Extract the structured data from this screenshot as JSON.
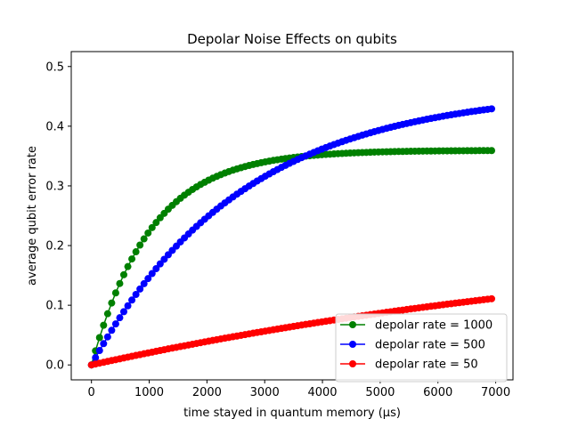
{
  "chart_data": {
    "type": "line",
    "title": "Depolar Noise Effects on qubits",
    "xlabel": "time stayed in quantum memory (µs)",
    "ylabel": "average qubit error rate",
    "xlim": [
      -350,
      7300
    ],
    "ylim": [
      -0.025,
      0.525
    ],
    "xticks": [
      0,
      1000,
      2000,
      3000,
      4000,
      5000,
      6000,
      7000
    ],
    "xtick_labels": [
      "0",
      "1000",
      "2000",
      "3000",
      "4000",
      "5000",
      "6000",
      "7000"
    ],
    "yticks": [
      0.0,
      0.1,
      0.2,
      0.3,
      0.4,
      0.5
    ],
    "ytick_labels": [
      "0.0",
      "0.1",
      "0.2",
      "0.3",
      "0.4",
      "0.5"
    ],
    "grid": false,
    "legend_position": "lower-right",
    "x_start": 0,
    "x_step": 70,
    "x_count": 100,
    "series": [
      {
        "name": "depolar rate = 1000",
        "color": "#008000",
        "values": [
          0.0,
          0.0237,
          0.0458,
          0.0665,
          0.0858,
          0.1038,
          0.1207,
          0.1364,
          0.1511,
          0.1648,
          0.1776,
          0.1896,
          0.2008,
          0.2112,
          0.221,
          0.2301,
          0.2386,
          0.2466,
          0.254,
          0.261,
          0.2674,
          0.2735,
          0.2792,
          0.2845,
          0.2894,
          0.294,
          0.2983,
          0.3024,
          0.3061,
          0.3096,
          0.3129,
          0.3159,
          0.3188,
          0.3215,
          0.324,
          0.3263,
          0.3285,
          0.3305,
          0.3324,
          0.3342,
          0.3359,
          0.3374,
          0.3389,
          0.3402,
          0.3415,
          0.3427,
          0.3438,
          0.3448,
          0.3458,
          0.3467,
          0.3476,
          0.3484,
          0.3491,
          0.3498,
          0.3505,
          0.3511,
          0.3516,
          0.3522,
          0.3527,
          0.3531,
          0.3536,
          0.354,
          0.3543,
          0.3547,
          0.355,
          0.3553,
          0.3556,
          0.3559,
          0.3561,
          0.3564,
          0.3566,
          0.3568,
          0.357,
          0.3571,
          0.3573,
          0.3575,
          0.3576,
          0.3577,
          0.3579,
          0.358,
          0.3581,
          0.3582,
          0.3583,
          0.3584,
          0.3584,
          0.3585,
          0.3586,
          0.3587,
          0.3587,
          0.3588,
          0.3588,
          0.3589,
          0.3589,
          0.359,
          0.359,
          0.359,
          0.3591,
          0.3591,
          0.3591,
          0.3592
        ]
      },
      {
        "name": "depolar rate = 500",
        "color": "#0000ff",
        "values": [
          0.0,
          0.0122,
          0.0241,
          0.0357,
          0.047,
          0.058,
          0.0687,
          0.0791,
          0.0892,
          0.0991,
          0.1087,
          0.1181,
          0.1272,
          0.1361,
          0.1447,
          0.1531,
          0.1613,
          0.1693,
          0.177,
          0.1846,
          0.1919,
          0.1991,
          0.2061,
          0.2128,
          0.2194,
          0.2259,
          0.2321,
          0.2382,
          0.2441,
          0.2499,
          0.2555,
          0.261,
          0.2663,
          0.2715,
          0.2765,
          0.2814,
          0.2862,
          0.2908,
          0.2953,
          0.2997,
          0.304,
          0.3082,
          0.3122,
          0.3162,
          0.32,
          0.3238,
          0.3274,
          0.331,
          0.3344,
          0.3378,
          0.341,
          0.3442,
          0.3473,
          0.3503,
          0.3532,
          0.3561,
          0.3589,
          0.3616,
          0.3642,
          0.3668,
          0.3693,
          0.3717,
          0.3741,
          0.3764,
          0.3786,
          0.3808,
          0.3829,
          0.385,
          0.387,
          0.389,
          0.3909,
          0.3928,
          0.3946,
          0.3964,
          0.3981,
          0.3998,
          0.4014,
          0.403,
          0.4045,
          0.406,
          0.4075,
          0.4089,
          0.4103,
          0.4117,
          0.413,
          0.4143,
          0.4155,
          0.4168,
          0.418,
          0.4191,
          0.4202,
          0.4213,
          0.4224,
          0.4234,
          0.4245,
          0.4254,
          0.4264,
          0.4273,
          0.4282,
          0.4291
        ]
      },
      {
        "name": "depolar rate = 50",
        "color": "#ff0000",
        "values": [
          0.0,
          0.0015,
          0.003,
          0.0044,
          0.0059,
          0.0074,
          0.0088,
          0.0102,
          0.0117,
          0.0131,
          0.0145,
          0.0159,
          0.0173,
          0.0187,
          0.0201,
          0.0214,
          0.0228,
          0.0242,
          0.0255,
          0.0269,
          0.0282,
          0.0295,
          0.0308,
          0.0321,
          0.0334,
          0.0347,
          0.036,
          0.0373,
          0.0386,
          0.0398,
          0.0411,
          0.0423,
          0.0436,
          0.0448,
          0.046,
          0.0472,
          0.0484,
          0.0496,
          0.0508,
          0.052,
          0.0532,
          0.0544,
          0.0555,
          0.0567,
          0.0578,
          0.059,
          0.0601,
          0.0612,
          0.0624,
          0.0635,
          0.0646,
          0.0657,
          0.0668,
          0.0679,
          0.0689,
          0.07,
          0.0711,
          0.0721,
          0.0732,
          0.0742,
          0.0753,
          0.0763,
          0.0773,
          0.0783,
          0.0794,
          0.0804,
          0.0814,
          0.0824,
          0.0833,
          0.0843,
          0.0853,
          0.0863,
          0.0872,
          0.0882,
          0.0891,
          0.0901,
          0.091,
          0.0919,
          0.0929,
          0.0938,
          0.0947,
          0.0956,
          0.0965,
          0.0974,
          0.0983,
          0.0991,
          0.1,
          0.1009,
          0.1018,
          0.1026,
          0.1035,
          0.1043,
          0.1051,
          0.106,
          0.1068,
          0.1076,
          0.1084,
          0.1093,
          0.1101,
          0.1109
        ]
      }
    ]
  }
}
